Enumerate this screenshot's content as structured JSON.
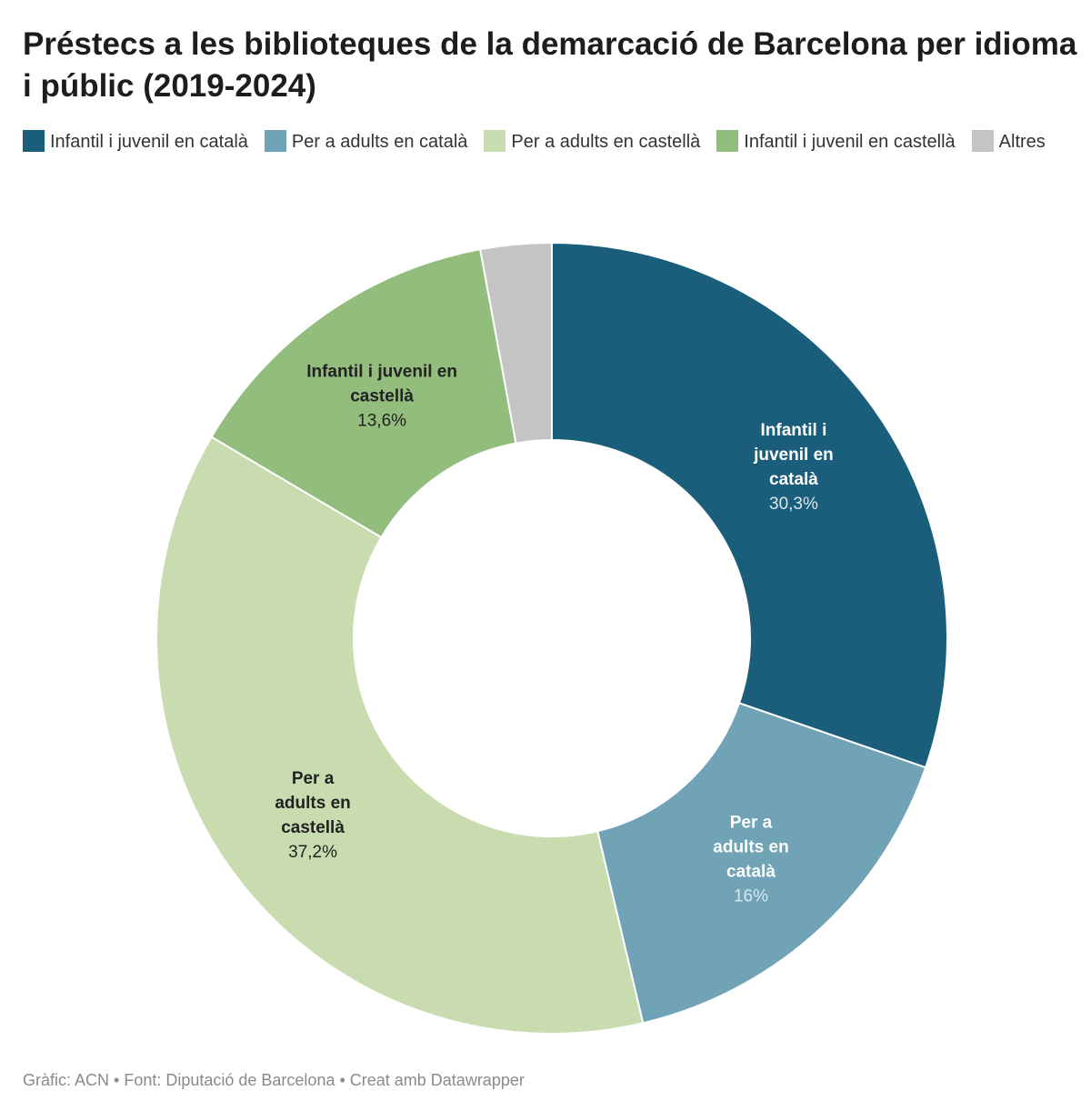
{
  "chart_data": {
    "type": "pie",
    "variant": "donut",
    "title": "Préstecs a les biblioteques de la demarcació de Barcelona per idioma i públic (2019-2024)",
    "legend_position": "top",
    "slices": [
      {
        "name": "Infantil i juvenil en català",
        "value": 30.3,
        "color": "#1b5e7b",
        "text_color": "#ffffff",
        "label_lines": [
          "Infantil i",
          "juvenil en",
          "català"
        ],
        "value_label": "30,3%"
      },
      {
        "name": "Per a adults en català",
        "value": 16.0,
        "color": "#6fa3b5",
        "text_color": "#ffffff",
        "label_lines": [
          "Per a",
          "adults en",
          "català"
        ],
        "value_label": "16%"
      },
      {
        "name": "Per a adults en castellà",
        "value": 37.2,
        "color": "#c8dcb0",
        "text_color": "#222222",
        "label_lines": [
          "Per a",
          "adults en",
          "castellà"
        ],
        "value_label": "37,2%"
      },
      {
        "name": "Infantil i juvenil en castellà",
        "value": 13.6,
        "color": "#93bd7c",
        "text_color": "#222222",
        "label_lines": [
          "Infantil i juvenil en",
          "castellà"
        ],
        "value_label": "13,6%"
      },
      {
        "name": "Altres",
        "value": 2.9,
        "color": "#c4c4c4",
        "text_color": "#222222",
        "label_lines": [],
        "value_label": ""
      }
    ]
  },
  "footer": "Gràfic: ACN • Font: Diputació de Barcelona • Creat amb Datawrapper"
}
